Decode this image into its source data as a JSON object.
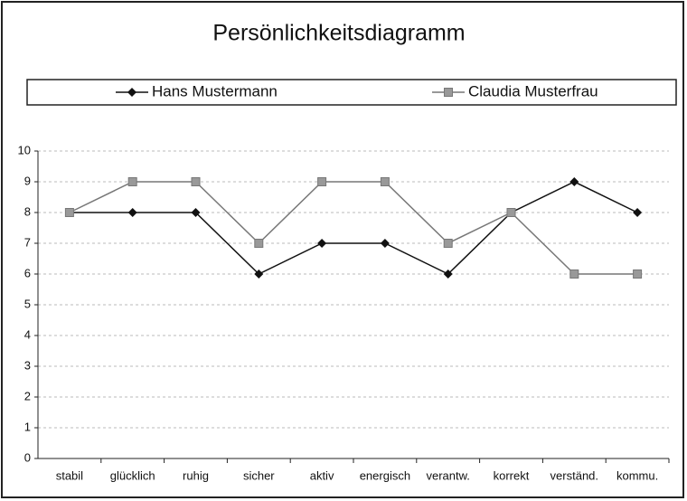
{
  "chart_data": {
    "type": "line",
    "title": "Persönlichkeitsdiagramm",
    "categories": [
      "stabil",
      "glücklich",
      "ruhig",
      "sicher",
      "aktiv",
      "energisch",
      "verantw.",
      "korrekt",
      "verständ.",
      "kommu."
    ],
    "series": [
      {
        "name": "Hans Mustermann",
        "color": "#111111",
        "marker": "diamond",
        "values": [
          8,
          8,
          8,
          6,
          7,
          7,
          6,
          8,
          9,
          8
        ]
      },
      {
        "name": "Claudia Musterfrau",
        "color": "#777777",
        "marker": "square",
        "values": [
          8,
          9,
          9,
          7,
          9,
          9,
          7,
          8,
          6,
          6
        ]
      }
    ],
    "ylim": [
      0,
      10
    ],
    "yticks": [
      0,
      1,
      2,
      3,
      4,
      5,
      6,
      7,
      8,
      9,
      10
    ],
    "grid": true,
    "legend": "top"
  }
}
